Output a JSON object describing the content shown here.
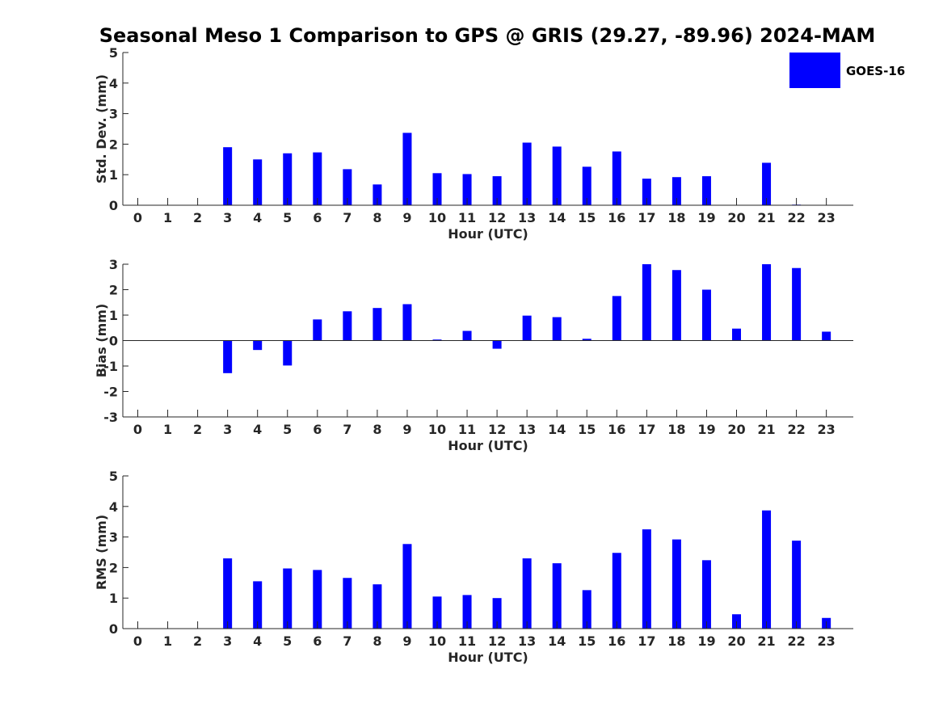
{
  "title": "Seasonal Meso 1 Comparison to GPS @ GRIS (29.27, -89.96) 2024-MAM",
  "colors": {
    "bar": "#0000ff",
    "axis": "#262626",
    "title": "#000000"
  },
  "legend": {
    "label": "GOES-16",
    "placement": "top-right"
  },
  "chart_data": [
    {
      "type": "bar",
      "ylabel": "Std. Dev. (mm)",
      "xlabel": "Hour (UTC)",
      "ylim": [
        0,
        5
      ],
      "yticks": [
        "0",
        "1",
        "2",
        "3",
        "4",
        "5"
      ],
      "yticks_values": [
        0,
        1,
        2,
        3,
        4,
        5
      ],
      "categories": [
        "0",
        "1",
        "2",
        "3",
        "4",
        "5",
        "6",
        "7",
        "8",
        "9",
        "10",
        "11",
        "12",
        "13",
        "14",
        "15",
        "16",
        "17",
        "18",
        "19",
        "20",
        "21",
        "22",
        "23"
      ],
      "series": [
        {
          "name": "GOES-16",
          "values": [
            null,
            null,
            null,
            1.9,
            1.5,
            1.7,
            1.73,
            1.18,
            0.68,
            2.37,
            1.05,
            1.02,
            0.95,
            2.05,
            1.92,
            1.26,
            1.76,
            0.87,
            0.92,
            0.95,
            null,
            1.39,
            0.02,
            null
          ]
        }
      ]
    },
    {
      "type": "bar",
      "ylabel": "Bias (mm)",
      "xlabel": "Hour (UTC)",
      "ylim": [
        -3,
        3
      ],
      "yticks": [
        "-3",
        "-2",
        "-1",
        "0",
        "1",
        "2",
        "3"
      ],
      "yticks_values": [
        -3,
        -2,
        -1,
        0,
        1,
        2,
        3
      ],
      "categories": [
        "0",
        "1",
        "2",
        "3",
        "4",
        "5",
        "6",
        "7",
        "8",
        "9",
        "10",
        "11",
        "12",
        "13",
        "14",
        "15",
        "16",
        "17",
        "18",
        "19",
        "20",
        "21",
        "22",
        "23"
      ],
      "series": [
        {
          "name": "GOES-16",
          "values": [
            null,
            null,
            null,
            -1.28,
            -0.37,
            -0.98,
            0.83,
            1.15,
            1.28,
            1.43,
            0.04,
            0.38,
            -0.32,
            0.98,
            0.92,
            0.07,
            1.75,
            3.0,
            2.77,
            2.0,
            0.47,
            3.0,
            2.85,
            0.35
          ]
        }
      ]
    },
    {
      "type": "bar",
      "ylabel": "RMS (mm)",
      "xlabel": "Hour (UTC)",
      "ylim": [
        0,
        5
      ],
      "yticks": [
        "0",
        "1",
        "2",
        "3",
        "4",
        "5"
      ],
      "yticks_values": [
        0,
        1,
        2,
        3,
        4,
        5
      ],
      "categories": [
        "0",
        "1",
        "2",
        "3",
        "4",
        "5",
        "6",
        "7",
        "8",
        "9",
        "10",
        "11",
        "12",
        "13",
        "14",
        "15",
        "16",
        "17",
        "18",
        "19",
        "20",
        "21",
        "22",
        "23"
      ],
      "series": [
        {
          "name": "GOES-16",
          "values": [
            null,
            null,
            null,
            2.3,
            1.55,
            1.97,
            1.92,
            1.66,
            1.45,
            2.77,
            1.05,
            1.1,
            1.0,
            2.3,
            2.14,
            1.26,
            2.48,
            3.25,
            2.92,
            2.24,
            0.47,
            3.87,
            2.88,
            0.35
          ]
        }
      ]
    }
  ]
}
